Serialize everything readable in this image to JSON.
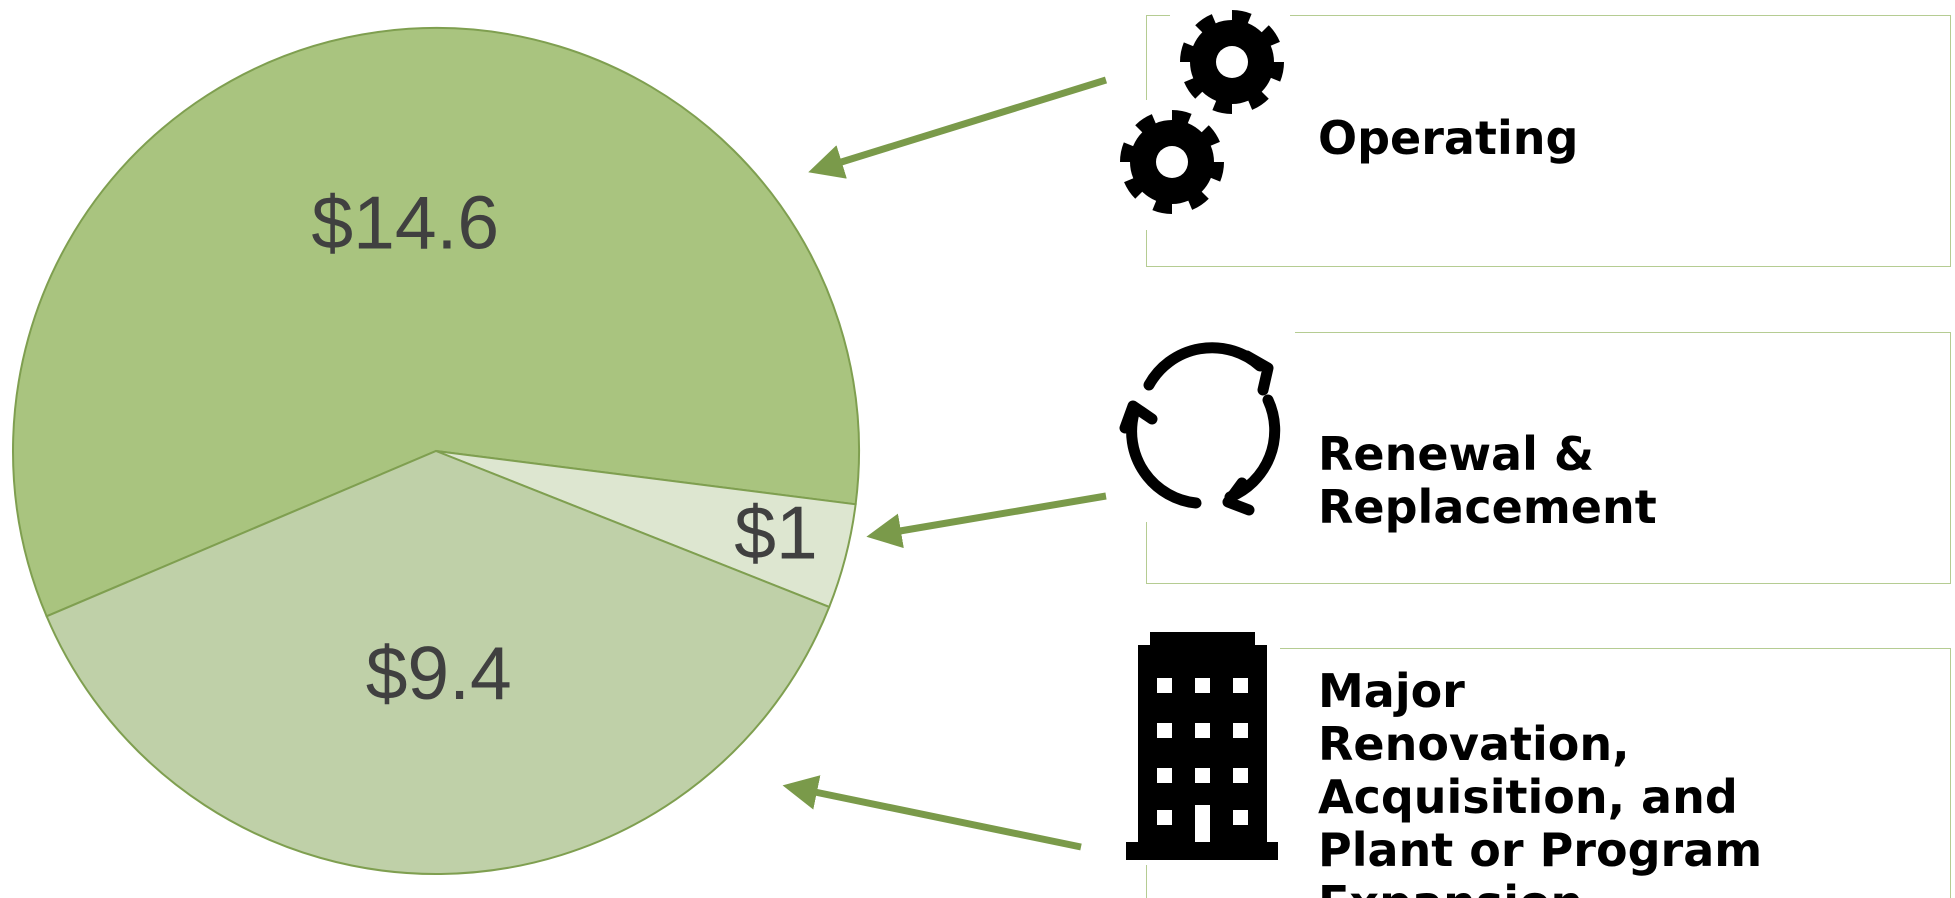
{
  "chart_data": {
    "type": "pie",
    "categories": [
      "Operating",
      "Renewal & Replacement",
      "Major Renovation, Acquisition, and Plant or Program Expansion"
    ],
    "values": [
      14.6,
      1,
      9.4
    ],
    "value_labels": [
      "$14.6",
      "$1",
      "$9.4"
    ],
    "colors": [
      "#a9c47f",
      "#dde6d0",
      "#bfd0a8"
    ]
  }
}
